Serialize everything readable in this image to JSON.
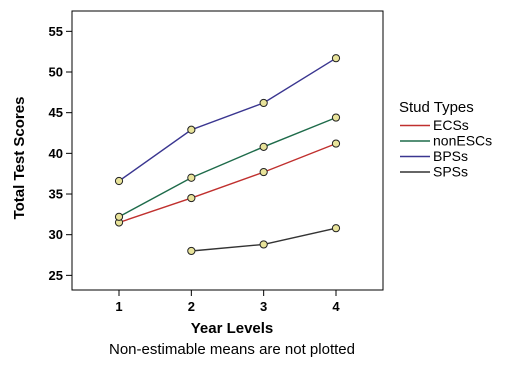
{
  "chart_data": {
    "type": "line",
    "xlabel": "Year  Levels",
    "ylabel": "Total Test  Scores",
    "footnote": "Non-estimable means are not plotted",
    "legend_title": "Stud Types",
    "legend_placement": "right",
    "grid": false,
    "xlim": [
      0.35,
      4.65
    ],
    "ylim": [
      23.2,
      57.5
    ],
    "x_ticks": [
      1,
      2,
      3,
      4
    ],
    "y_ticks": [
      25,
      30,
      35,
      40,
      45,
      50,
      55
    ],
    "series": [
      {
        "name": "ECSs",
        "color": "#c0302e",
        "x": [
          1,
          2,
          3,
          4
        ],
        "y": [
          31.5,
          34.5,
          37.7,
          41.2
        ]
      },
      {
        "name": "nonESCs",
        "color": "#1e6b4a",
        "x": [
          1,
          2,
          3,
          4
        ],
        "y": [
          32.2,
          37.0,
          40.8,
          44.4
        ]
      },
      {
        "name": "BPSs",
        "color": "#3a3690",
        "x": [
          1,
          2,
          3,
          4
        ],
        "y": [
          36.6,
          42.9,
          46.2,
          51.7
        ]
      },
      {
        "name": "SPSs",
        "color": "#333333",
        "x": [
          2,
          3,
          4
        ],
        "y": [
          28.0,
          28.8,
          30.8
        ]
      }
    ],
    "marker_fill": "#e8e39a",
    "marker_stroke": "#222222"
  }
}
